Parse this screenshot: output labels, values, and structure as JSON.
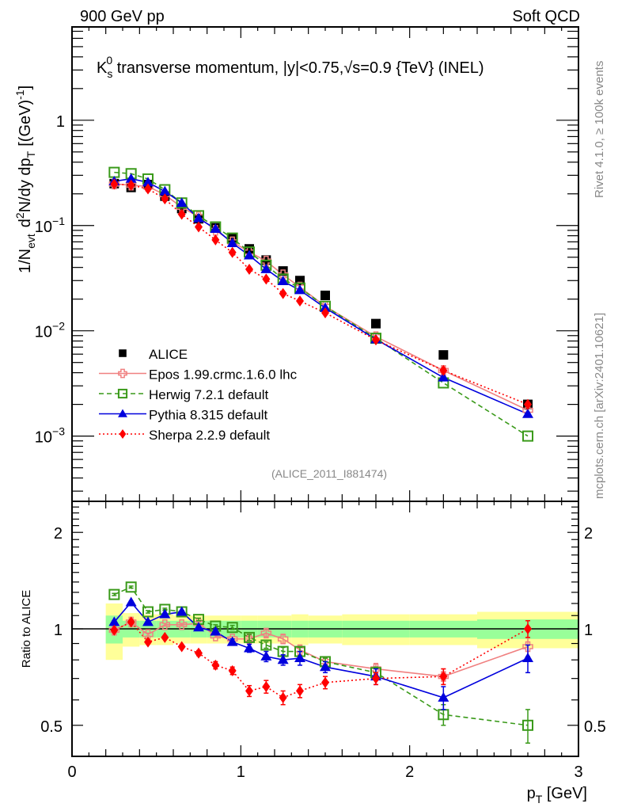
{
  "header": {
    "left": "900 GeV pp",
    "right": "Soft QCD"
  },
  "side_labels": {
    "rivet": "Rivet 4.1.0, ≥ 100k events",
    "mcplots": "mcplots.cern.ch [arXiv:2401.10621]"
  },
  "chart_data": [
    {
      "type": "scatter",
      "panel": "main",
      "title": "K⁰s transverse momentum, |y|<0.75,√s=0.9 {TeV} (INEL)",
      "title_parts": {
        "pre": "K",
        "sup": "0",
        "sub": "s",
        "post": " transverse momentum, |y|<0.75,√s=0.9 {TeV} (INEL)"
      },
      "xlabel": "p_T [GeV]",
      "ylabel": "1/N_evt d²N/dy dp_T [(GeV)⁻¹]",
      "ylabel_parts": {
        "a": "1/N",
        "a_sub": "evt",
        "b": "d",
        "b_sup": "2",
        "c": "N/dy dp",
        "c_sub": "T",
        "d": "[(GeV)",
        "d_sup": "-1",
        "e": "]"
      },
      "xlim": [
        0,
        3
      ],
      "ylim": [
        0.00024,
        7.7
      ],
      "yscale": "log",
      "ytick_labels": [
        {
          "value": 1,
          "base": "1",
          "exp": ""
        },
        {
          "value": 0.1,
          "base": "10",
          "exp": "−1"
        },
        {
          "value": 0.01,
          "base": "10",
          "exp": "−2"
        },
        {
          "value": 0.001,
          "base": "10",
          "exp": "−3"
        }
      ],
      "watermark": "(ALICE_2011_I881474)",
      "legend_position": "lower-left",
      "x": [
        0.25,
        0.35,
        0.45,
        0.55,
        0.65,
        0.75,
        0.85,
        0.95,
        1.05,
        1.15,
        1.25,
        1.35,
        1.5,
        1.8,
        2.2,
        2.7
      ],
      "series": [
        {
          "name": "ALICE",
          "color": "#000000",
          "marker": "square-filled",
          "line": "none",
          "values": [
            0.25,
            0.23,
            0.245,
            0.19,
            0.145,
            0.116,
            0.095,
            0.075,
            0.06,
            0.047,
            0.037,
            0.03,
            0.0217,
            0.0117,
            0.0059,
            0.002
          ]
        },
        {
          "name": "Epos 1.99.crmc.1.6.0 lhc",
          "color": "#f08080",
          "marker": "cross-open",
          "line": "solid",
          "values": [
            0.248,
            0.242,
            0.235,
            0.196,
            0.149,
            0.121,
            0.09,
            0.07,
            0.056,
            0.046,
            0.034,
            0.026,
            0.0171,
            0.0088,
            0.0042,
            0.00176
          ]
        },
        {
          "name": "Herwig 7.2.1 default",
          "color": "#3a9a1a",
          "marker": "square-open",
          "line": "dashed",
          "values": [
            0.32,
            0.311,
            0.277,
            0.219,
            0.164,
            0.124,
            0.097,
            0.076,
            0.056,
            0.042,
            0.031,
            0.0255,
            0.0171,
            0.0085,
            0.0032,
            0.001
          ]
        },
        {
          "name": "Pythia 8.315 default",
          "color": "#0000dd",
          "marker": "triangle-filled",
          "line": "solid",
          "values": [
            0.263,
            0.278,
            0.257,
            0.211,
            0.164,
            0.117,
            0.093,
            0.068,
            0.052,
            0.0385,
            0.0296,
            0.0243,
            0.0165,
            0.0083,
            0.0036,
            0.00162
          ]
        },
        {
          "name": "Sherpa 2.2.9 default",
          "color": "#ff0000",
          "marker": "diamond-filled",
          "line": "dotted",
          "values": [
            0.248,
            0.242,
            0.223,
            0.179,
            0.128,
            0.097,
            0.073,
            0.0555,
            0.0384,
            0.031,
            0.0226,
            0.0192,
            0.0148,
            0.0082,
            0.0042,
            0.002
          ]
        }
      ]
    },
    {
      "type": "scatter",
      "panel": "ratio",
      "ylabel": "Ratio to ALICE",
      "xlabel": "p_T [GeV]",
      "xlim": [
        0,
        3
      ],
      "ylim": [
        0.4,
        2.5
      ],
      "yscale": "log",
      "xtick_labels": [
        "0",
        "1",
        "2",
        "3"
      ],
      "ytick_labels": [
        "0.5",
        "1",
        "2"
      ],
      "reference_line": 1,
      "x": [
        0.25,
        0.35,
        0.45,
        0.55,
        0.65,
        0.75,
        0.85,
        0.95,
        1.05,
        1.15,
        1.25,
        1.35,
        1.5,
        1.8,
        2.2,
        2.7
      ],
      "bands": {
        "bin_edges": [
          0.2,
          0.3,
          0.4,
          0.5,
          0.6,
          0.7,
          0.8,
          0.9,
          1.0,
          1.1,
          1.2,
          1.3,
          1.4,
          1.6,
          2.0,
          2.4,
          3.0
        ],
        "stat_color": "#99ff99",
        "total_color": "#ffff99",
        "stat": [
          0.1,
          0.06,
          0.06,
          0.06,
          0.06,
          0.06,
          0.06,
          0.06,
          0.06,
          0.06,
          0.06,
          0.06,
          0.06,
          0.06,
          0.06,
          0.07
        ],
        "total": [
          0.2,
          0.12,
          0.11,
          0.11,
          0.1,
          0.1,
          0.1,
          0.1,
          0.1,
          0.1,
          0.1,
          0.11,
          0.1,
          0.11,
          0.11,
          0.13
        ]
      },
      "series": [
        {
          "name": "Epos 1.99.crmc.1.6.0 lhc",
          "color": "#f08080",
          "marker": "cross-open",
          "line": "solid",
          "values": [
            0.99,
            1.05,
            0.96,
            1.03,
            1.03,
            1.04,
            0.95,
            0.93,
            0.93,
            0.97,
            0.93,
            0.86,
            0.79,
            0.75,
            0.71,
            0.88
          ],
          "err": [
            0.01,
            0.01,
            0.01,
            0.01,
            0.01,
            0.01,
            0.01,
            0.015,
            0.02,
            0.025,
            0.03,
            0.03,
            0.02,
            0.03,
            0.04,
            0.06
          ]
        },
        {
          "name": "Herwig 7.2.1 default",
          "color": "#3a9a1a",
          "marker": "square-open",
          "line": "dashed",
          "values": [
            1.28,
            1.35,
            1.13,
            1.15,
            1.13,
            1.07,
            1.02,
            1.01,
            0.94,
            0.89,
            0.85,
            0.85,
            0.79,
            0.73,
            0.54,
            0.5
          ],
          "err": [
            0.01,
            0.01,
            0.01,
            0.01,
            0.01,
            0.01,
            0.01,
            0.015,
            0.02,
            0.02,
            0.025,
            0.025,
            0.02,
            0.03,
            0.04,
            0.06
          ]
        },
        {
          "name": "Pythia 8.315 default",
          "color": "#0000dd",
          "marker": "triangle-filled",
          "line": "solid",
          "values": [
            1.05,
            1.21,
            1.05,
            1.11,
            1.13,
            1.01,
            0.98,
            0.91,
            0.87,
            0.82,
            0.8,
            0.81,
            0.76,
            0.71,
            0.61,
            0.81
          ],
          "err": [
            0.01,
            0.01,
            0.01,
            0.01,
            0.01,
            0.01,
            0.015,
            0.02,
            0.025,
            0.03,
            0.03,
            0.04,
            0.03,
            0.04,
            0.05,
            0.08
          ]
        },
        {
          "name": "Sherpa 2.2.9 default",
          "color": "#ff0000",
          "marker": "diamond-filled",
          "line": "dotted",
          "values": [
            0.99,
            1.05,
            0.91,
            0.94,
            0.88,
            0.84,
            0.77,
            0.74,
            0.64,
            0.66,
            0.61,
            0.64,
            0.68,
            0.7,
            0.71,
            1.0
          ],
          "err": [
            0.01,
            0.01,
            0.01,
            0.01,
            0.01,
            0.015,
            0.02,
            0.02,
            0.025,
            0.03,
            0.03,
            0.03,
            0.03,
            0.03,
            0.04,
            0.06
          ]
        }
      ]
    }
  ]
}
